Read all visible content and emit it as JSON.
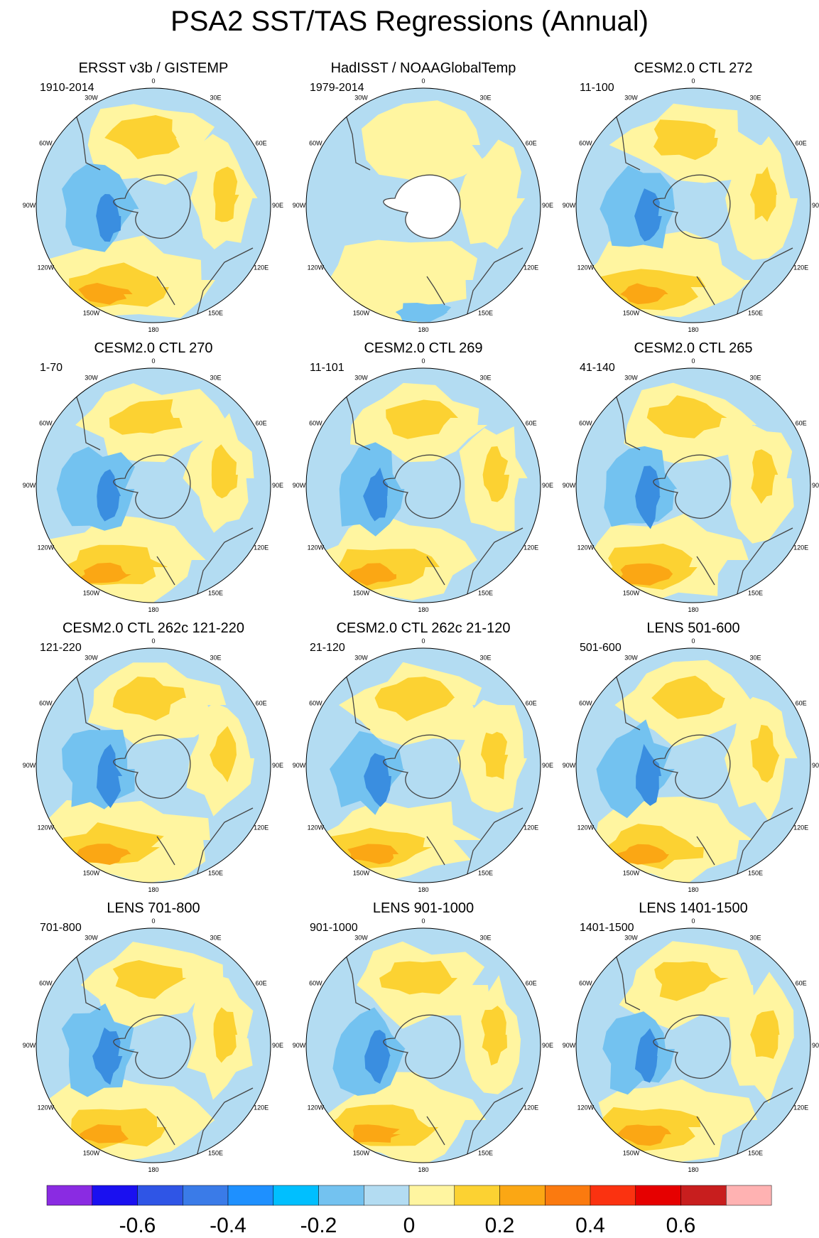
{
  "title": "PSA2 SST/TAS Regressions (Annual)",
  "longitude_labels": [
    "0",
    "30E",
    "60E",
    "90E",
    "120E",
    "150E",
    "180",
    "150W",
    "120W",
    "90W",
    "60W",
    "30W"
  ],
  "panels": [
    {
      "title": "ERSST v3b / GISTEMP",
      "period": "1910-2014"
    },
    {
      "title": "HadISST / NOAAGlobalTemp",
      "period": "1979-2014"
    },
    {
      "title": "CESM2.0 CTL 272",
      "period": "11-100"
    },
    {
      "title": "CESM2.0 CTL 270",
      "period": "1-70"
    },
    {
      "title": "CESM2.0 CTL 269",
      "period": "11-101"
    },
    {
      "title": "CESM2.0 CTL 265",
      "period": "41-140"
    },
    {
      "title": "CESM2.0 CTL 262c 121-220",
      "period": "121-220"
    },
    {
      "title": "CESM2.0 CTL 262c 21-120",
      "period": "21-120"
    },
    {
      "title": "LENS 501-600",
      "period": "501-600"
    },
    {
      "title": "LENS 701-800",
      "period": "701-800"
    },
    {
      "title": "LENS 901-1000",
      "period": "901-1000"
    },
    {
      "title": "LENS 1401-1500",
      "period": "1401-1500"
    }
  ],
  "colorbar": {
    "colors": [
      "#8a2be2",
      "#1a10f0",
      "#2f55e6",
      "#3a7be8",
      "#1e90ff",
      "#00bfff",
      "#73c2f0",
      "#b3dcf2",
      "#fff5a0",
      "#fcd232",
      "#fba714",
      "#fb7a0f",
      "#fb3210",
      "#e60000",
      "#c81e1e",
      "#ffb2b2"
    ],
    "tick_labels": [
      "-0.6",
      "-0.4",
      "-0.2",
      "0",
      "0.2",
      "0.4",
      "0.6"
    ]
  },
  "palette": {
    "neg_light": "#b3dcf2",
    "neg_mid": "#73c2f0",
    "neg_strong": "#3a8ee0",
    "pos_light": "#fff5a0",
    "pos_mid": "#fcd232",
    "pos_strong": "#fba714",
    "land": "#ffffff",
    "coast": "#444444"
  }
}
